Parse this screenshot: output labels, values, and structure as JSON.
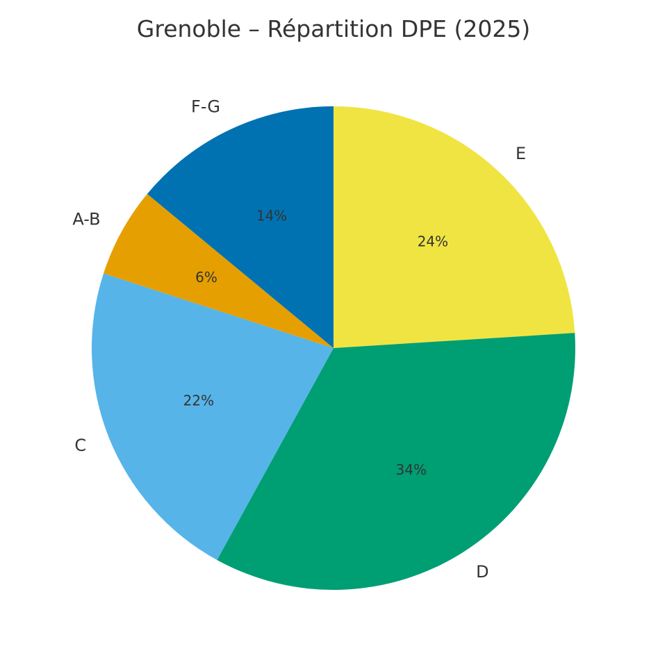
{
  "chart_data": {
    "type": "pie",
    "title": "Grenoble – Répartition DPE (2025)",
    "start_angle_deg": 90,
    "direction": "clockwise",
    "slices": [
      {
        "label": "E",
        "value": 24,
        "pct_label": "24%",
        "color": "#F0E442"
      },
      {
        "label": "D",
        "value": 34,
        "pct_label": "34%",
        "color": "#009E73"
      },
      {
        "label": "C",
        "value": 22,
        "pct_label": "22%",
        "color": "#56B4E9"
      },
      {
        "label": "A-B",
        "value": 6,
        "pct_label": "6%",
        "color": "#E69F00"
      },
      {
        "label": "F-G",
        "value": 14,
        "pct_label": "14%",
        "color": "#0072B2"
      }
    ]
  }
}
